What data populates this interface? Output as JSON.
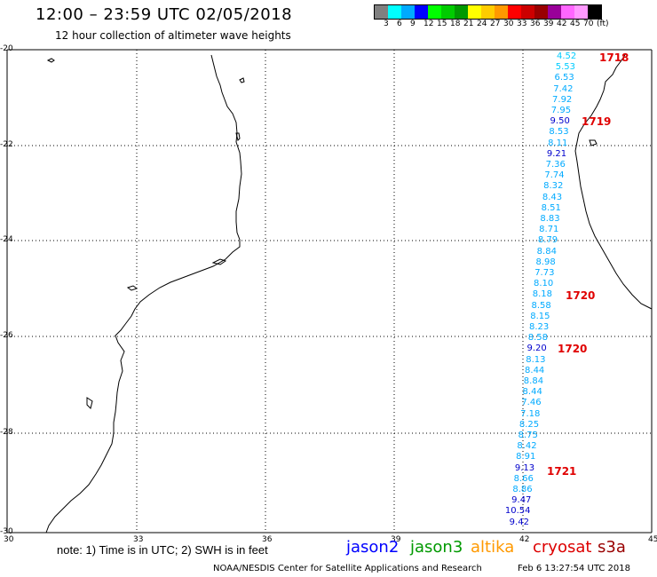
{
  "title": "12:00 – 23:59 UTC 02/05/2018",
  "subtitle": "12 hour collection of altimeter wave heights",
  "legend": {
    "unit": "(ft)",
    "colors": [
      "#808080",
      "#00ffff",
      "#00aaff",
      "#0000ff",
      "#00ff00",
      "#00cc00",
      "#009900",
      "#ffff00",
      "#ffcc00",
      "#ff9900",
      "#ff0000",
      "#cc0000",
      "#990000",
      "#990099",
      "#ff66ff",
      "#ff99ff",
      "#000000"
    ],
    "labels": [
      "3",
      "6",
      "9",
      "12",
      "15",
      "18",
      "21",
      "24",
      "27",
      "30",
      "33",
      "36",
      "39",
      "42",
      "45",
      "70"
    ]
  },
  "axes": {
    "lat_labels": [
      "-20",
      "-22",
      "-24",
      "-26",
      "-28",
      "-30"
    ],
    "lon_labels": [
      "30",
      "33",
      "36",
      "39",
      "42",
      "45"
    ]
  },
  "track": {
    "values": [
      "4.52",
      "5.53",
      "6.53",
      "7.42",
      "7.92",
      "7.95",
      "9.50",
      "8.53",
      "8.11",
      "9.21",
      "7.36",
      "7.74",
      "8.32",
      "8.43",
      "8.51",
      "8.83",
      "8.71",
      "8.79",
      "8.84",
      "8.98",
      "7.73",
      "8.10",
      "8.18",
      "8.58",
      "8.15",
      "8.23",
      "8.58",
      "9.20",
      "8.13",
      "8.44",
      "8.84",
      "8.44",
      "7.46",
      "7.18",
      "8.25",
      "8.75",
      "8.42",
      "8.91",
      "9.13",
      "8.66",
      "8.86",
      "9.47",
      "10.54",
      "9.42"
    ],
    "colors": [
      "#00ccff",
      "#00ccff",
      "#00aaff",
      "#00aaff",
      "#00aaff",
      "#00aaff",
      "#0000cc",
      "#00aaff",
      "#00aaff",
      "#0000cc",
      "#00aaff",
      "#00aaff",
      "#00aaff",
      "#00aaff",
      "#00aaff",
      "#00aaff",
      "#00aaff",
      "#00aaff",
      "#00aaff",
      "#00aaff",
      "#00aaff",
      "#00aaff",
      "#00aaff",
      "#00aaff",
      "#00aaff",
      "#00aaff",
      "#00aaff",
      "#0000cc",
      "#00aaff",
      "#00aaff",
      "#00aaff",
      "#00aaff",
      "#00aaff",
      "#00aaff",
      "#00aaff",
      "#00aaff",
      "#00aaff",
      "#00aaff",
      "#0000cc",
      "#00aaff",
      "#00aaff",
      "#0000cc",
      "#0000cc",
      "#0000cc"
    ]
  },
  "pass_labels": [
    "1718",
    "1719",
    "1720",
    "1720",
    "1721"
  ],
  "note": "note:  1) Time is in UTC;  2) SWH is in feet",
  "satellites": [
    {
      "name": "jason2",
      "color": "#0000ff"
    },
    {
      "name": "jason3",
      "color": "#009900"
    },
    {
      "name": "altika",
      "color": "#ff9900"
    },
    {
      "name": "cryosat",
      "color": "#dd0000"
    },
    {
      "name": "s3a",
      "color": "#990000"
    }
  ],
  "credit": "NOAA/NESDIS Center for Satellite Applications and Research",
  "credit_time": "Feb  6 13:27:54 UTC 2018"
}
